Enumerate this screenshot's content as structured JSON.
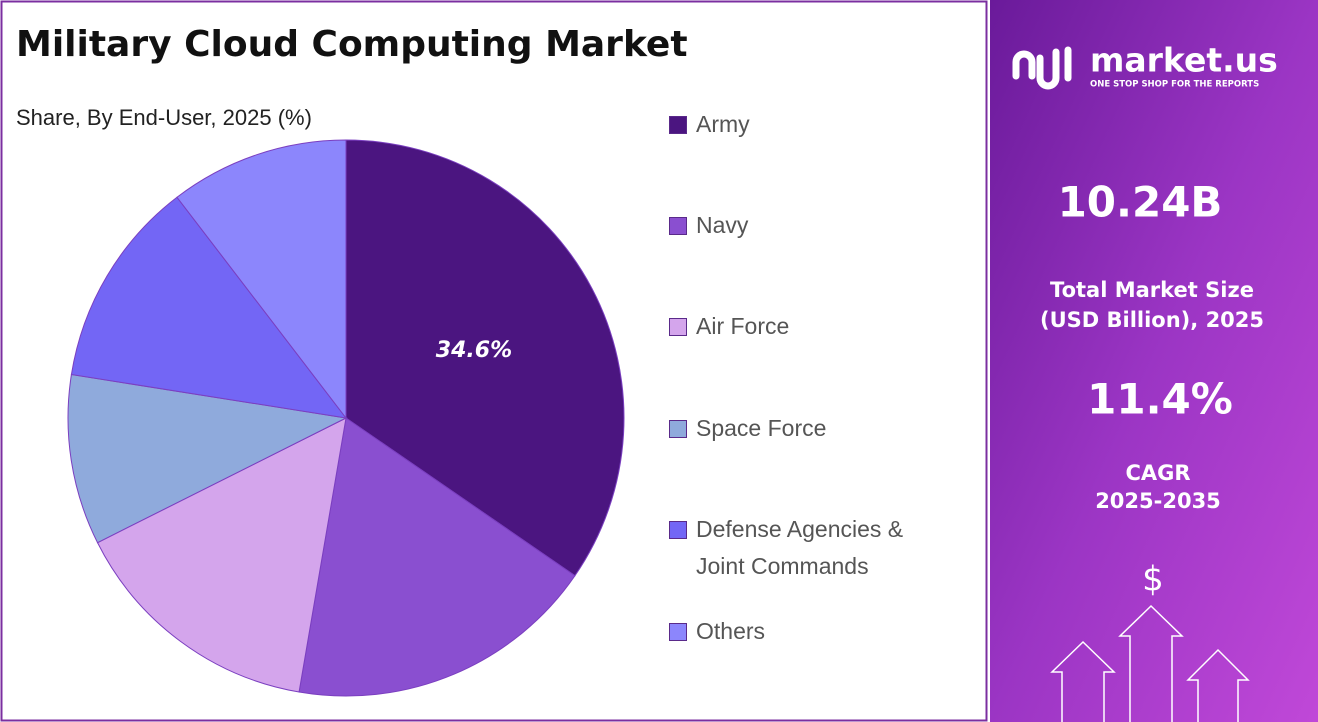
{
  "chart_data": {
    "type": "pie",
    "title": "Military Cloud Computing Market",
    "subtitle": "Share, By End-User, 2025 (%)",
    "categories": [
      "Army",
      "Navy",
      "Air Force",
      "Space Force",
      "Defense Agencies & Joint Commands",
      "Others"
    ],
    "values": [
      34.6,
      18.1,
      14.9,
      9.9,
      12.1,
      10.4
    ],
    "value_labels": [
      "34.6%",
      null,
      null,
      null,
      null,
      null
    ],
    "colors": [
      "#4b1580",
      "#8a4fd0",
      "#d4a5ec",
      "#8faadc",
      "#7366f5",
      "#8c86fc"
    ],
    "legend": "right"
  },
  "side_panel": {
    "brand": "market.us",
    "tagline": "ONE STOP SHOP FOR THE REPORTS",
    "market_size": "10.24B",
    "market_size_label": [
      "Total Market Size",
      "(USD Billion), 2025"
    ],
    "cagr": "11.4%",
    "cagr_label": [
      "CAGR",
      "2025-2035"
    ],
    "icon": "$"
  }
}
